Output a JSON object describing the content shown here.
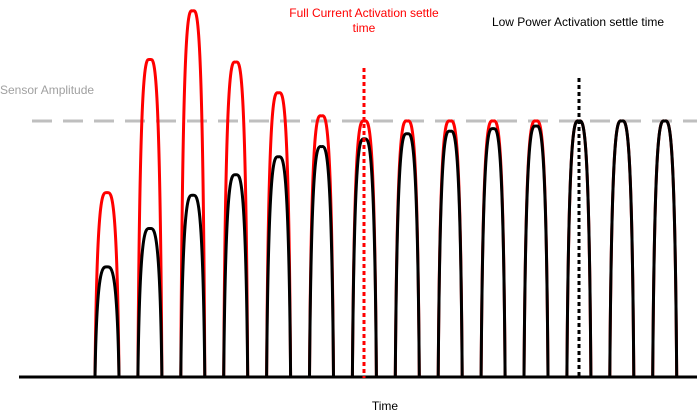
{
  "labels": {
    "full_current": "Full Current Activation settle time",
    "low_power": "Low Power Activation settle time",
    "sensor_amplitude": "Sensor Amplitude",
    "x_axis": "Time"
  },
  "colors": {
    "full_current": "#ff0000",
    "low_power": "#000000",
    "sensor_amplitude": "#bfbfbf",
    "axis": "#000000"
  },
  "chart_data": {
    "type": "line",
    "title": "",
    "xlabel": "Time",
    "ylabel": "",
    "grid": false,
    "pulse_index": [
      1,
      2,
      3,
      4,
      5,
      6,
      7,
      8,
      9,
      10,
      11,
      12,
      13,
      14
    ],
    "series": [
      {
        "name": "Full Current Activation",
        "color": "#ff0000",
        "values": [
          0.72,
          1.24,
          1.43,
          1.23,
          1.11,
          1.02,
          1.0,
          1.0,
          1.0,
          1.0,
          1.0,
          1.0,
          1.0,
          1.0
        ]
      },
      {
        "name": "Low Power Activation",
        "color": "#000000",
        "values": [
          0.43,
          0.58,
          0.71,
          0.79,
          0.86,
          0.9,
          0.93,
          0.95,
          0.96,
          0.97,
          0.98,
          1.0,
          1.0,
          1.0
        ]
      }
    ],
    "reference_lines": [
      {
        "name": "Sensor Amplitude",
        "orientation": "horizontal",
        "value": 1.0,
        "style": "dashed",
        "color": "#bfbfbf"
      },
      {
        "name": "Full Current Activation settle time",
        "orientation": "vertical",
        "at_pulse": 7,
        "style": "dotted",
        "color": "#ff0000"
      },
      {
        "name": "Low Power Activation settle time",
        "orientation": "vertical",
        "at_pulse": 12,
        "style": "dotted",
        "color": "#000000"
      }
    ],
    "ylim": [
      0,
      1.45
    ]
  }
}
